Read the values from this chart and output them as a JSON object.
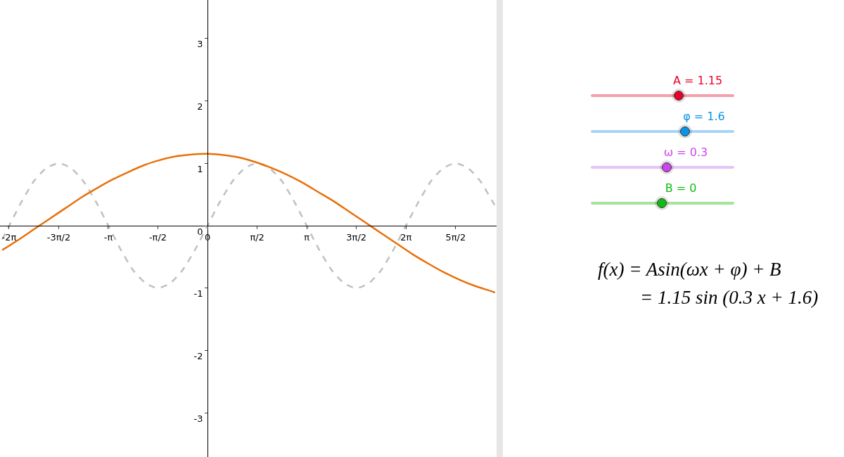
{
  "chart_data": {
    "type": "line",
    "xlim": [
      -6.57,
      9.15
    ],
    "ylim": [
      -3.7,
      3.61
    ],
    "xticks": [
      {
        "value": -6.283,
        "label": "-2π"
      },
      {
        "value": -4.712,
        "label": "-3π/2"
      },
      {
        "value": -3.142,
        "label": "-π"
      },
      {
        "value": -1.571,
        "label": "-π/2"
      },
      0,
      {
        "value": 1.571,
        "label": "π/2"
      },
      {
        "value": 3.142,
        "label": "π"
      },
      {
        "value": 4.712,
        "label": "3π/2"
      },
      {
        "value": 6.283,
        "label": "2π"
      },
      {
        "value": 7.854,
        "label": "5π/2"
      }
    ],
    "yticks": [
      -3,
      -2,
      -1,
      0,
      1,
      2,
      3
    ],
    "marker": "none",
    "series": [
      {
        "color": "#c0c0c0",
        "line_style": "dashed",
        "x": [
          -6.5,
          -6.28,
          -5.89,
          -5.5,
          -5.11,
          -4.71,
          -4.32,
          -3.93,
          -3.53,
          -3.14,
          -2.75,
          -2.36,
          -1.96,
          -1.57,
          -1.18,
          -0.79,
          -0.39,
          0,
          0.39,
          0.79,
          1.18,
          1.57,
          1.96,
          2.36,
          2.75,
          3.14,
          3.53,
          3.93,
          4.32,
          4.71,
          5.11,
          5.5,
          5.89,
          6.28,
          6.68,
          7.07,
          7.46,
          7.85,
          8.25,
          8.64,
          9.03,
          9.1
        ],
        "values": [
          -0.22,
          0,
          0.38,
          0.71,
          0.92,
          1,
          0.92,
          0.71,
          0.38,
          0,
          -0.38,
          -0.71,
          -0.92,
          -1,
          -0.92,
          -0.71,
          -0.38,
          0,
          0.38,
          0.71,
          0.92,
          1,
          0.92,
          0.71,
          0.38,
          0,
          -0.38,
          -0.71,
          -0.92,
          -1,
          -0.92,
          -0.71,
          -0.38,
          0,
          0.38,
          0.71,
          0.92,
          1,
          0.92,
          0.71,
          0.38,
          0.32
        ]
      },
      {
        "color": "#e8700a",
        "line_style": "solid",
        "x": [
          -6.5,
          -6,
          -5.5,
          -5,
          -4.5,
          -4,
          -3.5,
          -3,
          -2.5,
          -2,
          -1.5,
          -1,
          -0.5,
          0,
          0.5,
          1,
          1.5,
          2,
          2.5,
          3,
          3.5,
          4,
          4.5,
          5,
          5.5,
          6,
          6.5,
          7,
          7.5,
          8,
          8.5,
          9,
          9.1
        ],
        "values": [
          -0.39,
          -0.23,
          -0.06,
          0.11,
          0.28,
          0.45,
          0.6,
          0.74,
          0.86,
          0.97,
          1.05,
          1.11,
          1.14,
          1.15,
          1.13,
          1.09,
          1.02,
          0.93,
          0.82,
          0.69,
          0.54,
          0.39,
          0.22,
          0.05,
          -0.12,
          -0.29,
          -0.46,
          -0.61,
          -0.75,
          -0.87,
          -0.97,
          -1.05,
          -1.07
        ]
      }
    ],
    "annotations": [
      "A = 1.15",
      "φ = 1.6",
      "ω = 0.3",
      "B = 0",
      "f(x) = Asin(ωx + φ) + B",
      "= 1.15 sin (0.3 x + 1.6)"
    ]
  }
}
